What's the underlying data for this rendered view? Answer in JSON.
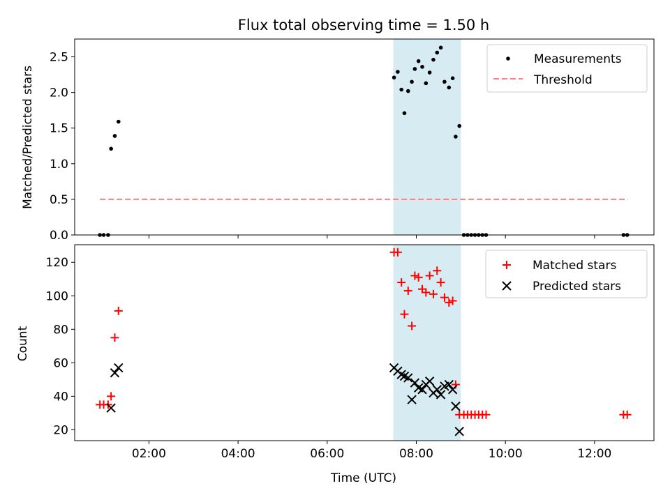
{
  "figure_title": "Flux total observing time = 1.50 h",
  "colors": {
    "measurements": "#000000",
    "threshold": "#ff7f7f",
    "matched": "#ff0000",
    "predicted": "#000000",
    "night_span": "#add8e6"
  },
  "chart_data": [
    {
      "type": "scatter",
      "title": "Flux total observing time = 1.50 h",
      "xlabel": "",
      "ylabel": "Matched/Predicted stars",
      "xlim": [
        "00:20",
        "13:20"
      ],
      "ylim": [
        0,
        2.75
      ],
      "x_ticks": [
        "02:00",
        "04:00",
        "06:00",
        "08:00",
        "10:00",
        "12:00"
      ],
      "x_tick_labels_shown": false,
      "y_ticks": [
        "0.0",
        "0.5",
        "1.0",
        "1.5",
        "2.0",
        "2.5"
      ],
      "grid": false,
      "legend_position": "upper right",
      "shaded_span": {
        "x": [
          "07:29",
          "09:00"
        ]
      },
      "series": [
        {
          "name": "Measurements",
          "kind": "points",
          "points": [
            {
              "x": "00:54",
              "y": 0
            },
            {
              "x": "00:59",
              "y": 0
            },
            {
              "x": "01:05",
              "y": 0
            },
            {
              "x": "01:09",
              "y": 1.21
            },
            {
              "x": "01:14",
              "y": 1.39
            },
            {
              "x": "01:19",
              "y": 1.59
            },
            {
              "x": "07:30",
              "y": 2.21
            },
            {
              "x": "07:35",
              "y": 2.29
            },
            {
              "x": "07:40",
              "y": 2.04
            },
            {
              "x": "07:44",
              "y": 1.71
            },
            {
              "x": "07:49",
              "y": 2.02
            },
            {
              "x": "07:54",
              "y": 2.15
            },
            {
              "x": "07:58",
              "y": 2.33
            },
            {
              "x": "08:03",
              "y": 2.44
            },
            {
              "x": "08:08",
              "y": 2.36
            },
            {
              "x": "08:13",
              "y": 2.13
            },
            {
              "x": "08:18",
              "y": 2.28
            },
            {
              "x": "08:23",
              "y": 2.46
            },
            {
              "x": "08:28",
              "y": 2.56
            },
            {
              "x": "08:33",
              "y": 2.63
            },
            {
              "x": "08:38",
              "y": 2.15
            },
            {
              "x": "08:44",
              "y": 2.07
            },
            {
              "x": "08:49",
              "y": 2.2
            },
            {
              "x": "08:53",
              "y": 1.38
            },
            {
              "x": "08:58",
              "y": 1.53
            },
            {
              "x": "09:04",
              "y": 0
            },
            {
              "x": "09:09",
              "y": 0
            },
            {
              "x": "09:14",
              "y": 0
            },
            {
              "x": "09:19",
              "y": 0
            },
            {
              "x": "09:24",
              "y": 0
            },
            {
              "x": "09:29",
              "y": 0
            },
            {
              "x": "09:34",
              "y": 0
            },
            {
              "x": "12:39",
              "y": 0
            },
            {
              "x": "12:44",
              "y": 0
            }
          ]
        },
        {
          "name": "Threshold",
          "kind": "dashed-line",
          "points": [
            {
              "x": "00:54",
              "y": 0.5
            },
            {
              "x": "12:45",
              "y": 0.5
            }
          ]
        }
      ]
    },
    {
      "type": "scatter",
      "title": "",
      "xlabel": "Time (UTC)",
      "ylabel": "Count",
      "xlim": [
        "00:20",
        "13:20"
      ],
      "ylim": [
        13.5,
        130.5
      ],
      "x_ticks": [
        "02:00",
        "04:00",
        "06:00",
        "08:00",
        "10:00",
        "12:00"
      ],
      "y_ticks": [
        "20",
        "40",
        "60",
        "80",
        "100",
        "120"
      ],
      "grid": false,
      "legend_position": "upper right",
      "shaded_span": {
        "x": [
          "07:29",
          "09:00"
        ]
      },
      "series": [
        {
          "name": "Matched stars",
          "kind": "plus-markers",
          "points": [
            {
              "x": "00:54",
              "y": 35
            },
            {
              "x": "00:59",
              "y": 35
            },
            {
              "x": "01:05",
              "y": 35
            },
            {
              "x": "01:09",
              "y": 40
            },
            {
              "x": "01:14",
              "y": 75
            },
            {
              "x": "01:19",
              "y": 91
            },
            {
              "x": "07:30",
              "y": 126
            },
            {
              "x": "07:35",
              "y": 126
            },
            {
              "x": "07:40",
              "y": 108
            },
            {
              "x": "07:44",
              "y": 89
            },
            {
              "x": "07:49",
              "y": 103
            },
            {
              "x": "07:54",
              "y": 82
            },
            {
              "x": "07:58",
              "y": 112
            },
            {
              "x": "08:03",
              "y": 111
            },
            {
              "x": "08:08",
              "y": 104
            },
            {
              "x": "08:13",
              "y": 102
            },
            {
              "x": "08:18",
              "y": 112
            },
            {
              "x": "08:23",
              "y": 101
            },
            {
              "x": "08:28",
              "y": 115
            },
            {
              "x": "08:33",
              "y": 108
            },
            {
              "x": "08:38",
              "y": 99
            },
            {
              "x": "08:44",
              "y": 96
            },
            {
              "x": "08:49",
              "y": 97
            },
            {
              "x": "08:53",
              "y": 47
            },
            {
              "x": "08:58",
              "y": 29
            },
            {
              "x": "09:04",
              "y": 29
            },
            {
              "x": "09:09",
              "y": 29
            },
            {
              "x": "09:14",
              "y": 29
            },
            {
              "x": "09:19",
              "y": 29
            },
            {
              "x": "09:24",
              "y": 29
            },
            {
              "x": "09:29",
              "y": 29
            },
            {
              "x": "09:34",
              "y": 29
            },
            {
              "x": "12:39",
              "y": 29
            },
            {
              "x": "12:44",
              "y": 29
            }
          ]
        },
        {
          "name": "Predicted stars",
          "kind": "x-markers",
          "points": [
            {
              "x": "01:09",
              "y": 33
            },
            {
              "x": "01:14",
              "y": 54
            },
            {
              "x": "01:19",
              "y": 57
            },
            {
              "x": "07:30",
              "y": 57
            },
            {
              "x": "07:35",
              "y": 55
            },
            {
              "x": "07:40",
              "y": 53
            },
            {
              "x": "07:44",
              "y": 52
            },
            {
              "x": "07:49",
              "y": 51
            },
            {
              "x": "07:54",
              "y": 38
            },
            {
              "x": "07:58",
              "y": 48
            },
            {
              "x": "08:03",
              "y": 45
            },
            {
              "x": "08:08",
              "y": 44
            },
            {
              "x": "08:13",
              "y": 47
            },
            {
              "x": "08:18",
              "y": 49
            },
            {
              "x": "08:23",
              "y": 42
            },
            {
              "x": "08:28",
              "y": 44
            },
            {
              "x": "08:33",
              "y": 41
            },
            {
              "x": "08:38",
              "y": 46
            },
            {
              "x": "08:44",
              "y": 47
            },
            {
              "x": "08:49",
              "y": 44
            },
            {
              "x": "08:53",
              "y": 34
            },
            {
              "x": "08:58",
              "y": 19
            }
          ]
        }
      ]
    }
  ]
}
